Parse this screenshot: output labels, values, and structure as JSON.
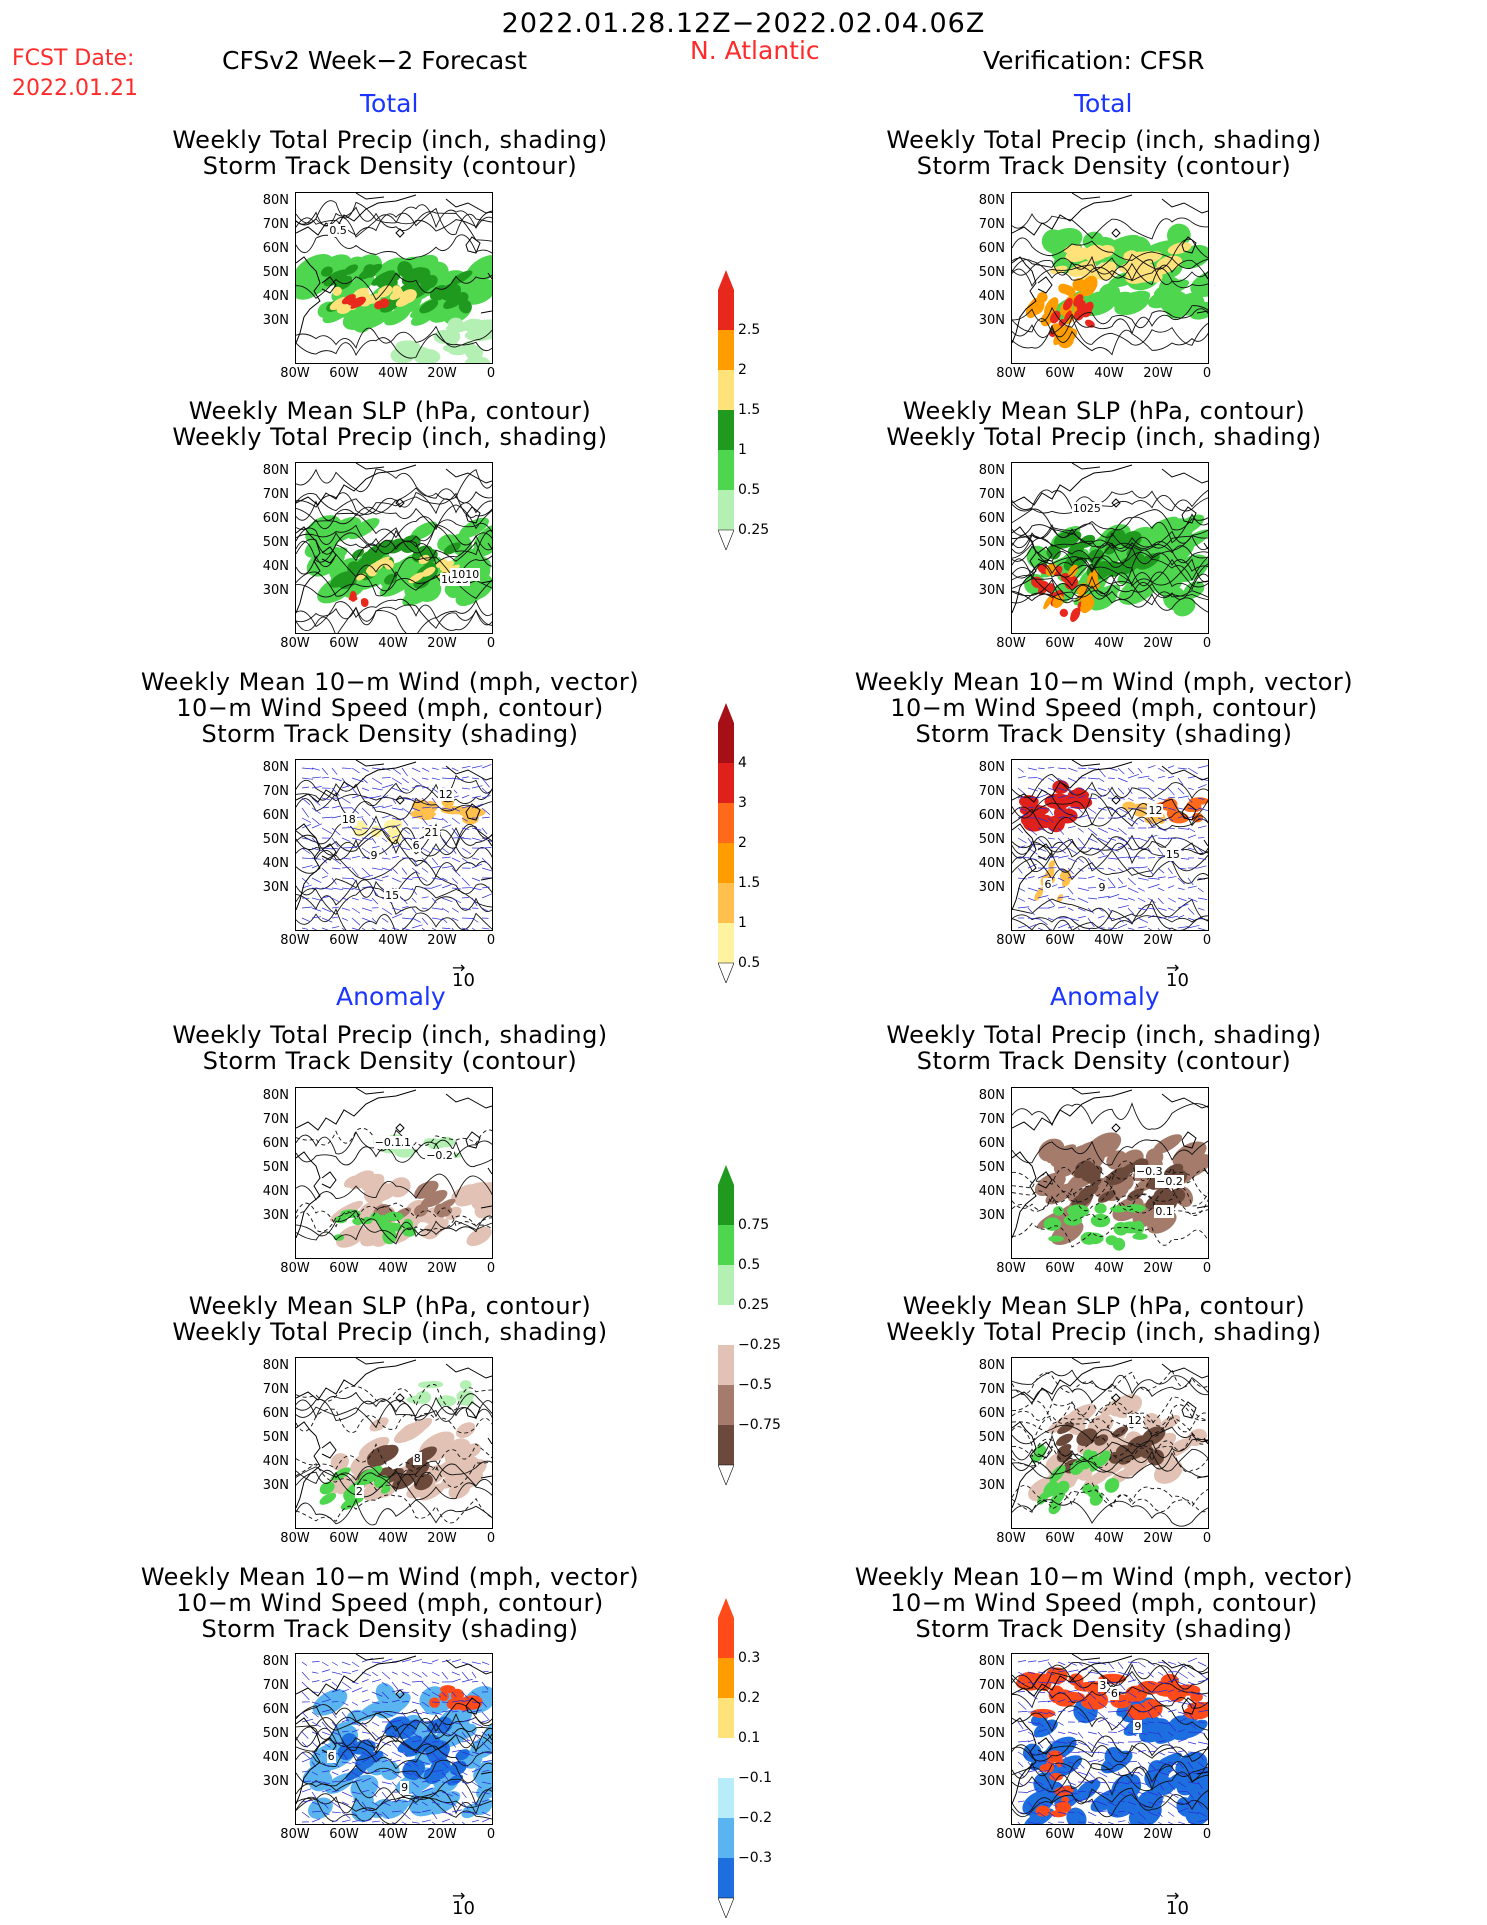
{
  "header": {
    "period": "2022.01.28.12Z−2022.02.04.06Z",
    "region": "N. Atlantic",
    "fcst_label": "FCST Date:",
    "fcst_date": "2022.01.21",
    "left_title": "CFSv2 Week−2 Forecast",
    "right_title": "Verification: CFSR"
  },
  "section_labels": {
    "total": "Total",
    "anomaly": "Anomaly"
  },
  "panel_titles": {
    "precip_track": [
      "Weekly Total Precip (inch, shading)",
      "Storm Track Density (contour)"
    ],
    "slp_precip": [
      "Weekly Mean SLP (hPa, contour)",
      "Weekly Total Precip (inch, shading)"
    ],
    "wind_track": [
      "Weekly Mean 10−m Wind (mph, vector)",
      "10−m Wind Speed (mph, contour)",
      "Storm Track Density (shading)"
    ]
  },
  "axes": {
    "lat_labels": [
      "80N",
      "70N",
      "60N",
      "50N",
      "40N",
      "30N"
    ],
    "lon_labels": [
      "80W",
      "60W",
      "40W",
      "20W",
      "0"
    ]
  },
  "vector_ref": "10",
  "colorbars": {
    "precip_total": {
      "labels": [
        "2.5",
        "2",
        "1.5",
        "1",
        "0.5",
        "0.25"
      ],
      "colors": [
        "#e8281c",
        "#ff9d00",
        "#ffe27a",
        "#1f9a1f",
        "#4ed64e",
        "#b4f0b4"
      ]
    },
    "track_total": {
      "labels": [
        "4",
        "3",
        "2",
        "1.5",
        "1",
        "0.5"
      ],
      "colors": [
        "#a50f15",
        "#e0201a",
        "#ff6a1a",
        "#ff9d00",
        "#ffc04d",
        "#fff3a0"
      ]
    },
    "precip_anom": {
      "labels": [
        "0.75",
        "0.5",
        "0.25",
        "−0.25",
        "−0.5",
        "−0.75"
      ],
      "colors": [
        "#1f9a1f",
        "#4ed64e",
        "#b4f0b4",
        "#ffffff",
        "#e2c2b4",
        "#a57c6c",
        "#6b4a3c"
      ]
    },
    "track_anom": {
      "labels": [
        "0.3",
        "0.2",
        "0.1",
        "−0.1",
        "−0.2",
        "−0.3"
      ],
      "colors": [
        "#ff4a1a",
        "#ff9d00",
        "#ffe27a",
        "#ffffff",
        "#b8ecf8",
        "#5ab4f0",
        "#1d6fe0"
      ]
    }
  },
  "contour_labels": {
    "fc_precip_total": [
      "0.5"
    ],
    "fc_slp_total": [
      "1015",
      "1010"
    ],
    "fc_wind_total": [
      "6",
      "12",
      "15",
      "18",
      "21",
      "9"
    ],
    "ob_wind_total": [
      "6",
      "12",
      "15",
      "9"
    ],
    "ob_slp_total": [
      "1025"
    ],
    "fc_precip_anom": [
      "−0.1",
      "−0.2",
      "−0.1"
    ],
    "ob_precip_anom": [
      "−0.2",
      "−0.3",
      "0.1"
    ],
    "fc_slp_anom": [
      "2",
      "8"
    ],
    "ob_slp_anom": [
      "12"
    ],
    "fc_wind_anom": [
      "6",
      "9"
    ],
    "ob_wind_anom": [
      "3",
      "6",
      "9"
    ]
  }
}
